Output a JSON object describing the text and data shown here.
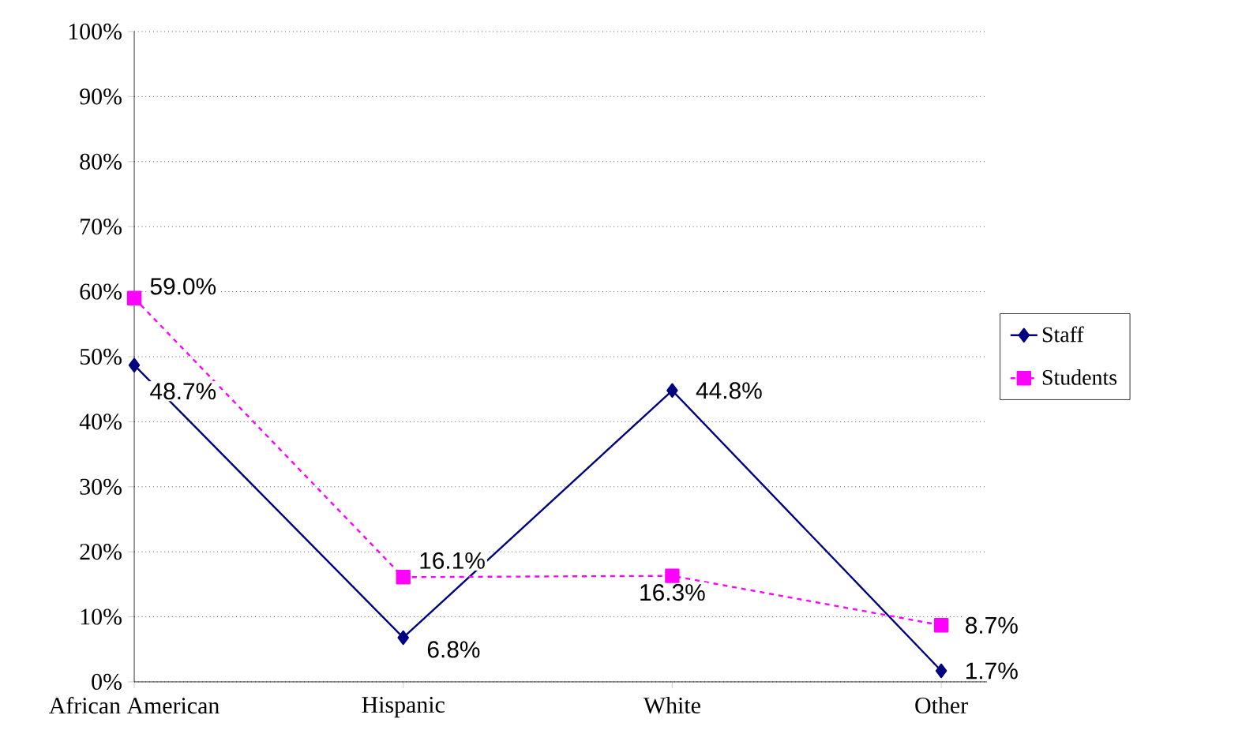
{
  "chart_data": {
    "type": "line",
    "categories": [
      "African American",
      "Hispanic",
      "White",
      "Other"
    ],
    "series": [
      {
        "name": "Staff",
        "color": "#000080",
        "values": [
          48.7,
          6.8,
          44.8,
          1.7
        ],
        "value_labels": [
          "48.7%",
          "6.8%",
          "44.8%",
          "1.7%"
        ],
        "marker": "diamond",
        "line_style": "solid"
      },
      {
        "name": "Students",
        "color": "#ff00ff",
        "values": [
          59.0,
          16.1,
          16.3,
          8.7
        ],
        "value_labels": [
          "59.0%",
          "16.1%",
          "16.3%",
          "8.7%"
        ],
        "marker": "square",
        "line_style": "dashed"
      }
    ],
    "ylim": [
      0,
      100
    ],
    "yticks": [
      {
        "value": 0,
        "label": "0%"
      },
      {
        "value": 10,
        "label": "10%"
      },
      {
        "value": 20,
        "label": "20%"
      },
      {
        "value": 30,
        "label": "30%"
      },
      {
        "value": 40,
        "label": "40%"
      },
      {
        "value": 50,
        "label": "50%"
      },
      {
        "value": 60,
        "label": "60%"
      },
      {
        "value": 70,
        "label": "70%"
      },
      {
        "value": 80,
        "label": "80%"
      },
      {
        "value": 90,
        "label": "90%"
      },
      {
        "value": 100,
        "label": "100%"
      }
    ],
    "grid": "y",
    "legend": "right"
  }
}
